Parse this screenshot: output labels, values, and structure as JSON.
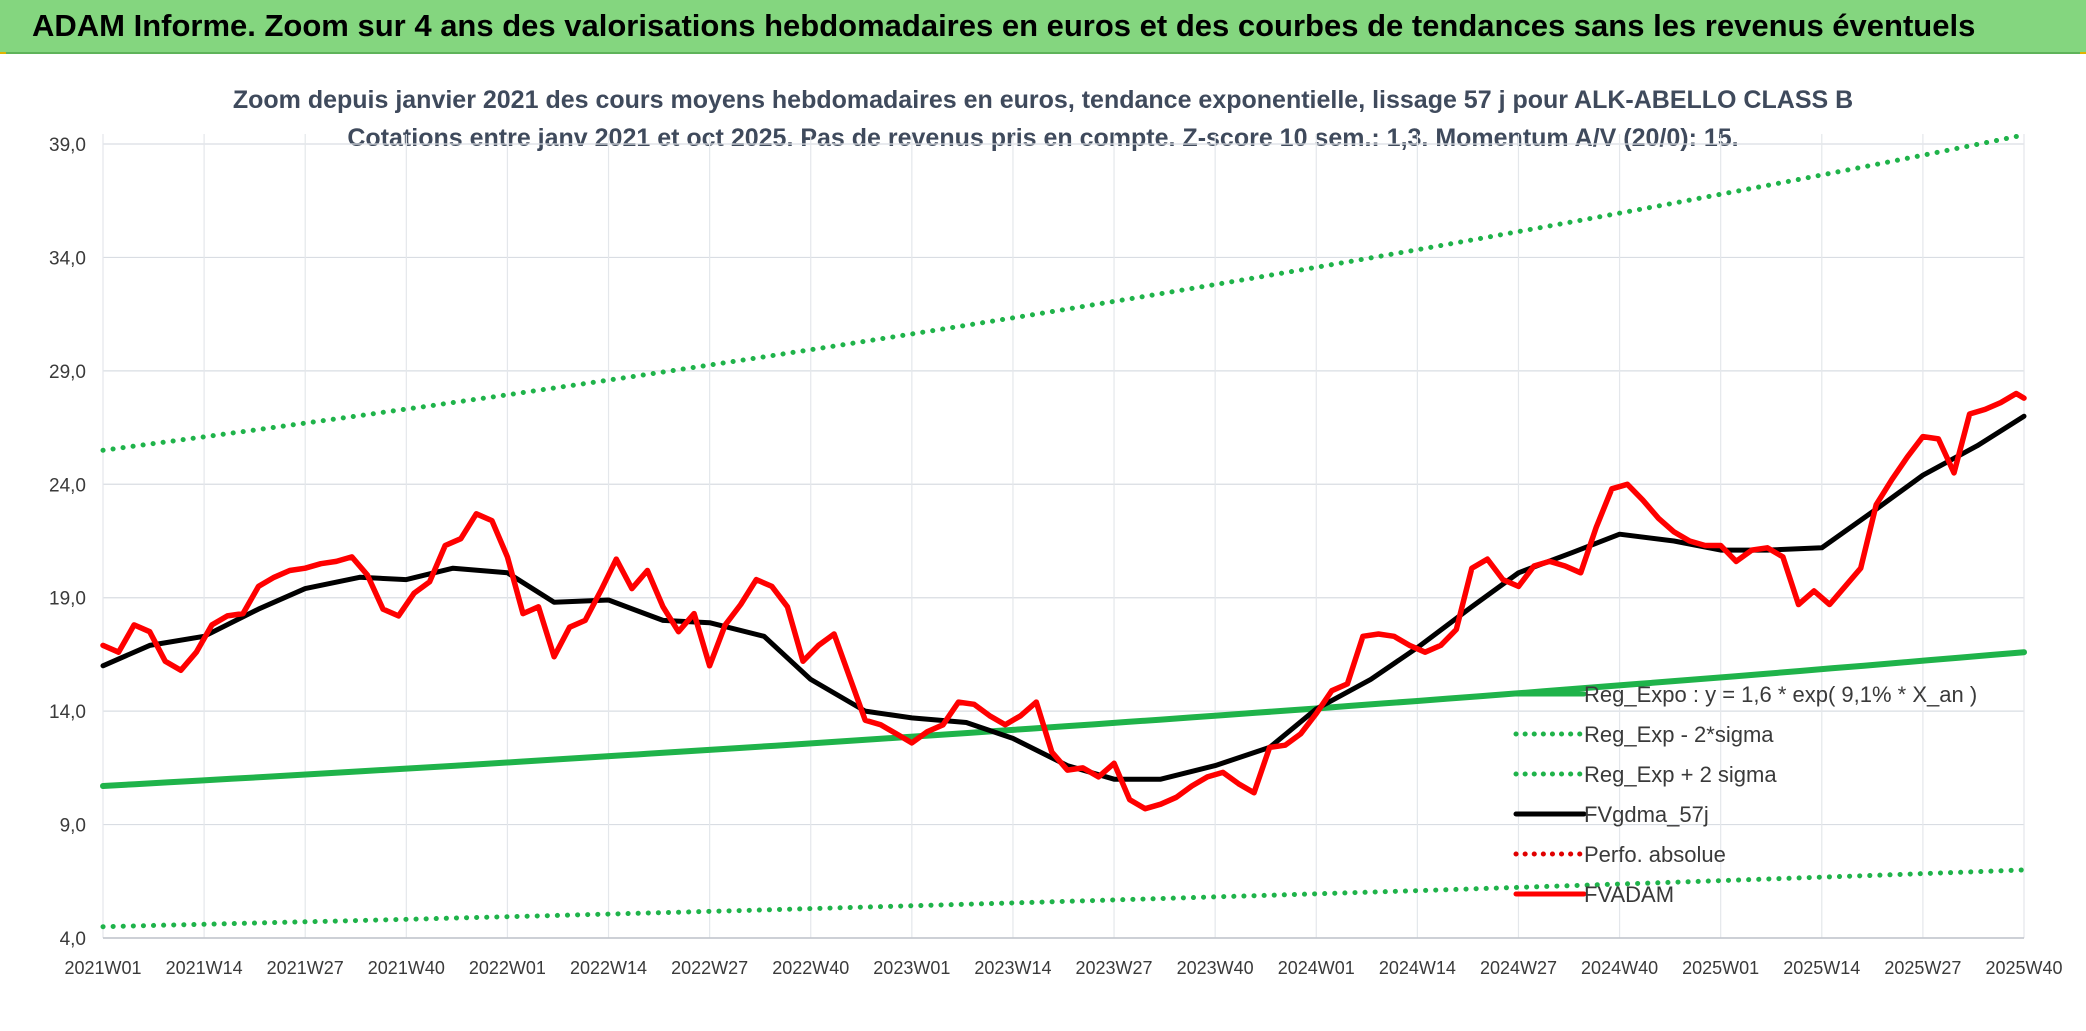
{
  "banner": {
    "text": "ADAM Informe. Zoom sur 4 ans des valorisations hebdomadaires en euros et des courbes de tendances sans les revenus éventuels",
    "color": "#84d67f"
  },
  "chart_data": {
    "type": "line",
    "title": "Zoom depuis janvier 2021 des cours moyens hebdomadaires en euros, tendance exponentielle, lissage 57 j pour ALK-ABELLO CLASS B",
    "subtitle": "Cotations entre janv 2021 et oct 2025. Pas de revenus pris en compte. Z-score 10 sem.: 1,3. Momentum A/V (20/0): 15.",
    "xlabel": "",
    "ylabel": "",
    "ylim": [
      4.0,
      39.0
    ],
    "yticks": [
      "4,0",
      "9,0",
      "14,0",
      "19,0",
      "24,0",
      "29,0",
      "34,0",
      "39,0"
    ],
    "yticks_values": [
      4,
      9,
      14,
      19,
      24,
      29,
      34,
      39
    ],
    "xticks": [
      "2021W01",
      "2021W14",
      "2021W27",
      "2021W40",
      "2022W01",
      "2022W14",
      "2022W27",
      "2022W40",
      "2023W01",
      "2023W14",
      "2023W27",
      "2023W40",
      "2024W01",
      "2024W14",
      "2024W27",
      "2024W40",
      "2025W01",
      "2025W14",
      "2025W27",
      "2025W40"
    ],
    "xticks_index": [
      0,
      13,
      26,
      39,
      52,
      65,
      78,
      91,
      104,
      117,
      130,
      143,
      156,
      169,
      182,
      195,
      208,
      221,
      234,
      247
    ],
    "grid": true,
    "legend_position": "bottom-right",
    "series": [
      {
        "name": "Reg_Expo : y = 1,6 * exp( 9,1% *  X_an )",
        "style": "solid",
        "color": "#1fb34a",
        "x": [
          0,
          247
        ],
        "values": [
          10.7,
          16.6
        ]
      },
      {
        "name": "Reg_Exp - 2*sigma",
        "style": "dotted",
        "color": "#1fb34a",
        "x": [
          0,
          247
        ],
        "values": [
          4.5,
          7.0
        ]
      },
      {
        "name": "Reg_Exp + 2 sigma",
        "style": "dotted",
        "color": "#1fb34a",
        "x": [
          0,
          247
        ],
        "values": [
          25.5,
          39.4
        ]
      },
      {
        "name": "FVgdma_57j",
        "style": "solid",
        "color": "#000000",
        "x": [
          0,
          6,
          13,
          20,
          26,
          33,
          39,
          45,
          52,
          58,
          65,
          72,
          78,
          85,
          91,
          98,
          104,
          111,
          117,
          124,
          130,
          136,
          143,
          150,
          156,
          163,
          169,
          176,
          182,
          189,
          195,
          202,
          208,
          214,
          221,
          228,
          234,
          241,
          247
        ],
        "values": [
          16.0,
          16.9,
          17.3,
          18.5,
          19.4,
          19.9,
          19.8,
          20.3,
          20.1,
          18.8,
          18.9,
          18.0,
          17.9,
          17.3,
          15.4,
          14.0,
          13.7,
          13.5,
          12.8,
          11.6,
          11.0,
          11.0,
          11.6,
          12.4,
          14.1,
          15.4,
          16.8,
          18.6,
          20.1,
          21.0,
          21.8,
          21.5,
          21.1,
          21.1,
          21.2,
          22.9,
          24.4,
          25.7,
          27.0
        ]
      },
      {
        "name": "Perfo. absolue",
        "style": "dotted",
        "color": "#e00000",
        "x": [],
        "values": []
      },
      {
        "name": "FVADAM",
        "style": "solid",
        "color": "#ff0000",
        "x": [
          0,
          2,
          4,
          6,
          8,
          10,
          12,
          14,
          16,
          18,
          20,
          22,
          24,
          26,
          28,
          30,
          32,
          34,
          36,
          38,
          40,
          42,
          44,
          46,
          48,
          50,
          52,
          54,
          56,
          58,
          60,
          62,
          64,
          66,
          68,
          70,
          72,
          74,
          76,
          78,
          80,
          82,
          84,
          86,
          88,
          90,
          92,
          94,
          96,
          98,
          100,
          102,
          104,
          106,
          108,
          110,
          112,
          114,
          116,
          118,
          120,
          122,
          124,
          126,
          128,
          130,
          132,
          134,
          136,
          138,
          140,
          142,
          144,
          146,
          148,
          150,
          152,
          154,
          156,
          158,
          160,
          162,
          164,
          166,
          168,
          170,
          172,
          174,
          176,
          178,
          180,
          182,
          184,
          186,
          188,
          190,
          192,
          194,
          196,
          198,
          200,
          202,
          204,
          206,
          208,
          210,
          212,
          214,
          216,
          218,
          220,
          222,
          224,
          226,
          228,
          230,
          232,
          234,
          236,
          238,
          240,
          242,
          244,
          246,
          247
        ],
        "values": [
          16.9,
          16.6,
          17.8,
          17.5,
          16.2,
          15.8,
          16.6,
          17.8,
          18.2,
          18.3,
          19.5,
          19.9,
          20.2,
          20.3,
          20.5,
          20.6,
          20.8,
          20.0,
          18.5,
          18.2,
          19.2,
          19.7,
          21.3,
          21.6,
          22.7,
          22.4,
          20.8,
          18.3,
          18.6,
          16.4,
          17.7,
          18.0,
          19.3,
          20.7,
          19.4,
          20.2,
          18.6,
          17.5,
          18.3,
          16.0,
          17.8,
          18.7,
          19.8,
          19.5,
          18.6,
          16.2,
          16.9,
          17.4,
          15.5,
          13.6,
          13.4,
          13.0,
          12.6,
          13.1,
          13.4,
          14.4,
          14.3,
          13.8,
          13.4,
          13.8,
          14.4,
          12.2,
          11.4,
          11.5,
          11.1,
          11.7,
          10.1,
          9.7,
          9.9,
          10.2,
          10.7,
          11.1,
          11.3,
          10.8,
          10.4,
          12.4,
          12.5,
          13.0,
          13.9,
          14.9,
          15.2,
          17.3,
          17.4,
          17.3,
          16.9,
          16.6,
          16.9,
          17.6,
          20.3,
          20.7,
          19.8,
          19.5,
          20.4,
          20.6,
          20.4,
          20.1,
          22.1,
          23.8,
          24.0,
          23.3,
          22.5,
          21.9,
          21.5,
          21.3,
          21.3,
          20.6,
          21.1,
          21.2,
          20.8,
          18.7,
          19.3,
          18.7,
          19.5,
          20.3,
          23.1,
          24.2,
          25.2,
          26.1,
          26.0,
          24.5,
          27.1,
          27.3,
          27.6,
          28.0,
          27.8
        ]
      }
    ]
  },
  "legend": {
    "items": [
      {
        "label": "Reg_Expo : y = 1,6 * exp( 9,1% *  X_an )",
        "style": "solid",
        "color": "#1fb34a"
      },
      {
        "label": "Reg_Exp - 2*sigma",
        "style": "dotted",
        "color": "#1fb34a"
      },
      {
        "label": "Reg_Exp + 2 sigma",
        "style": "dotted",
        "color": "#1fb34a"
      },
      {
        "label": "FVgdma_57j",
        "style": "solid",
        "color": "#000000"
      },
      {
        "label": "Perfo. absolue",
        "style": "dotted",
        "color": "#e00000"
      },
      {
        "label": "FVADAM",
        "style": "solid",
        "color": "#ff0000"
      }
    ]
  }
}
